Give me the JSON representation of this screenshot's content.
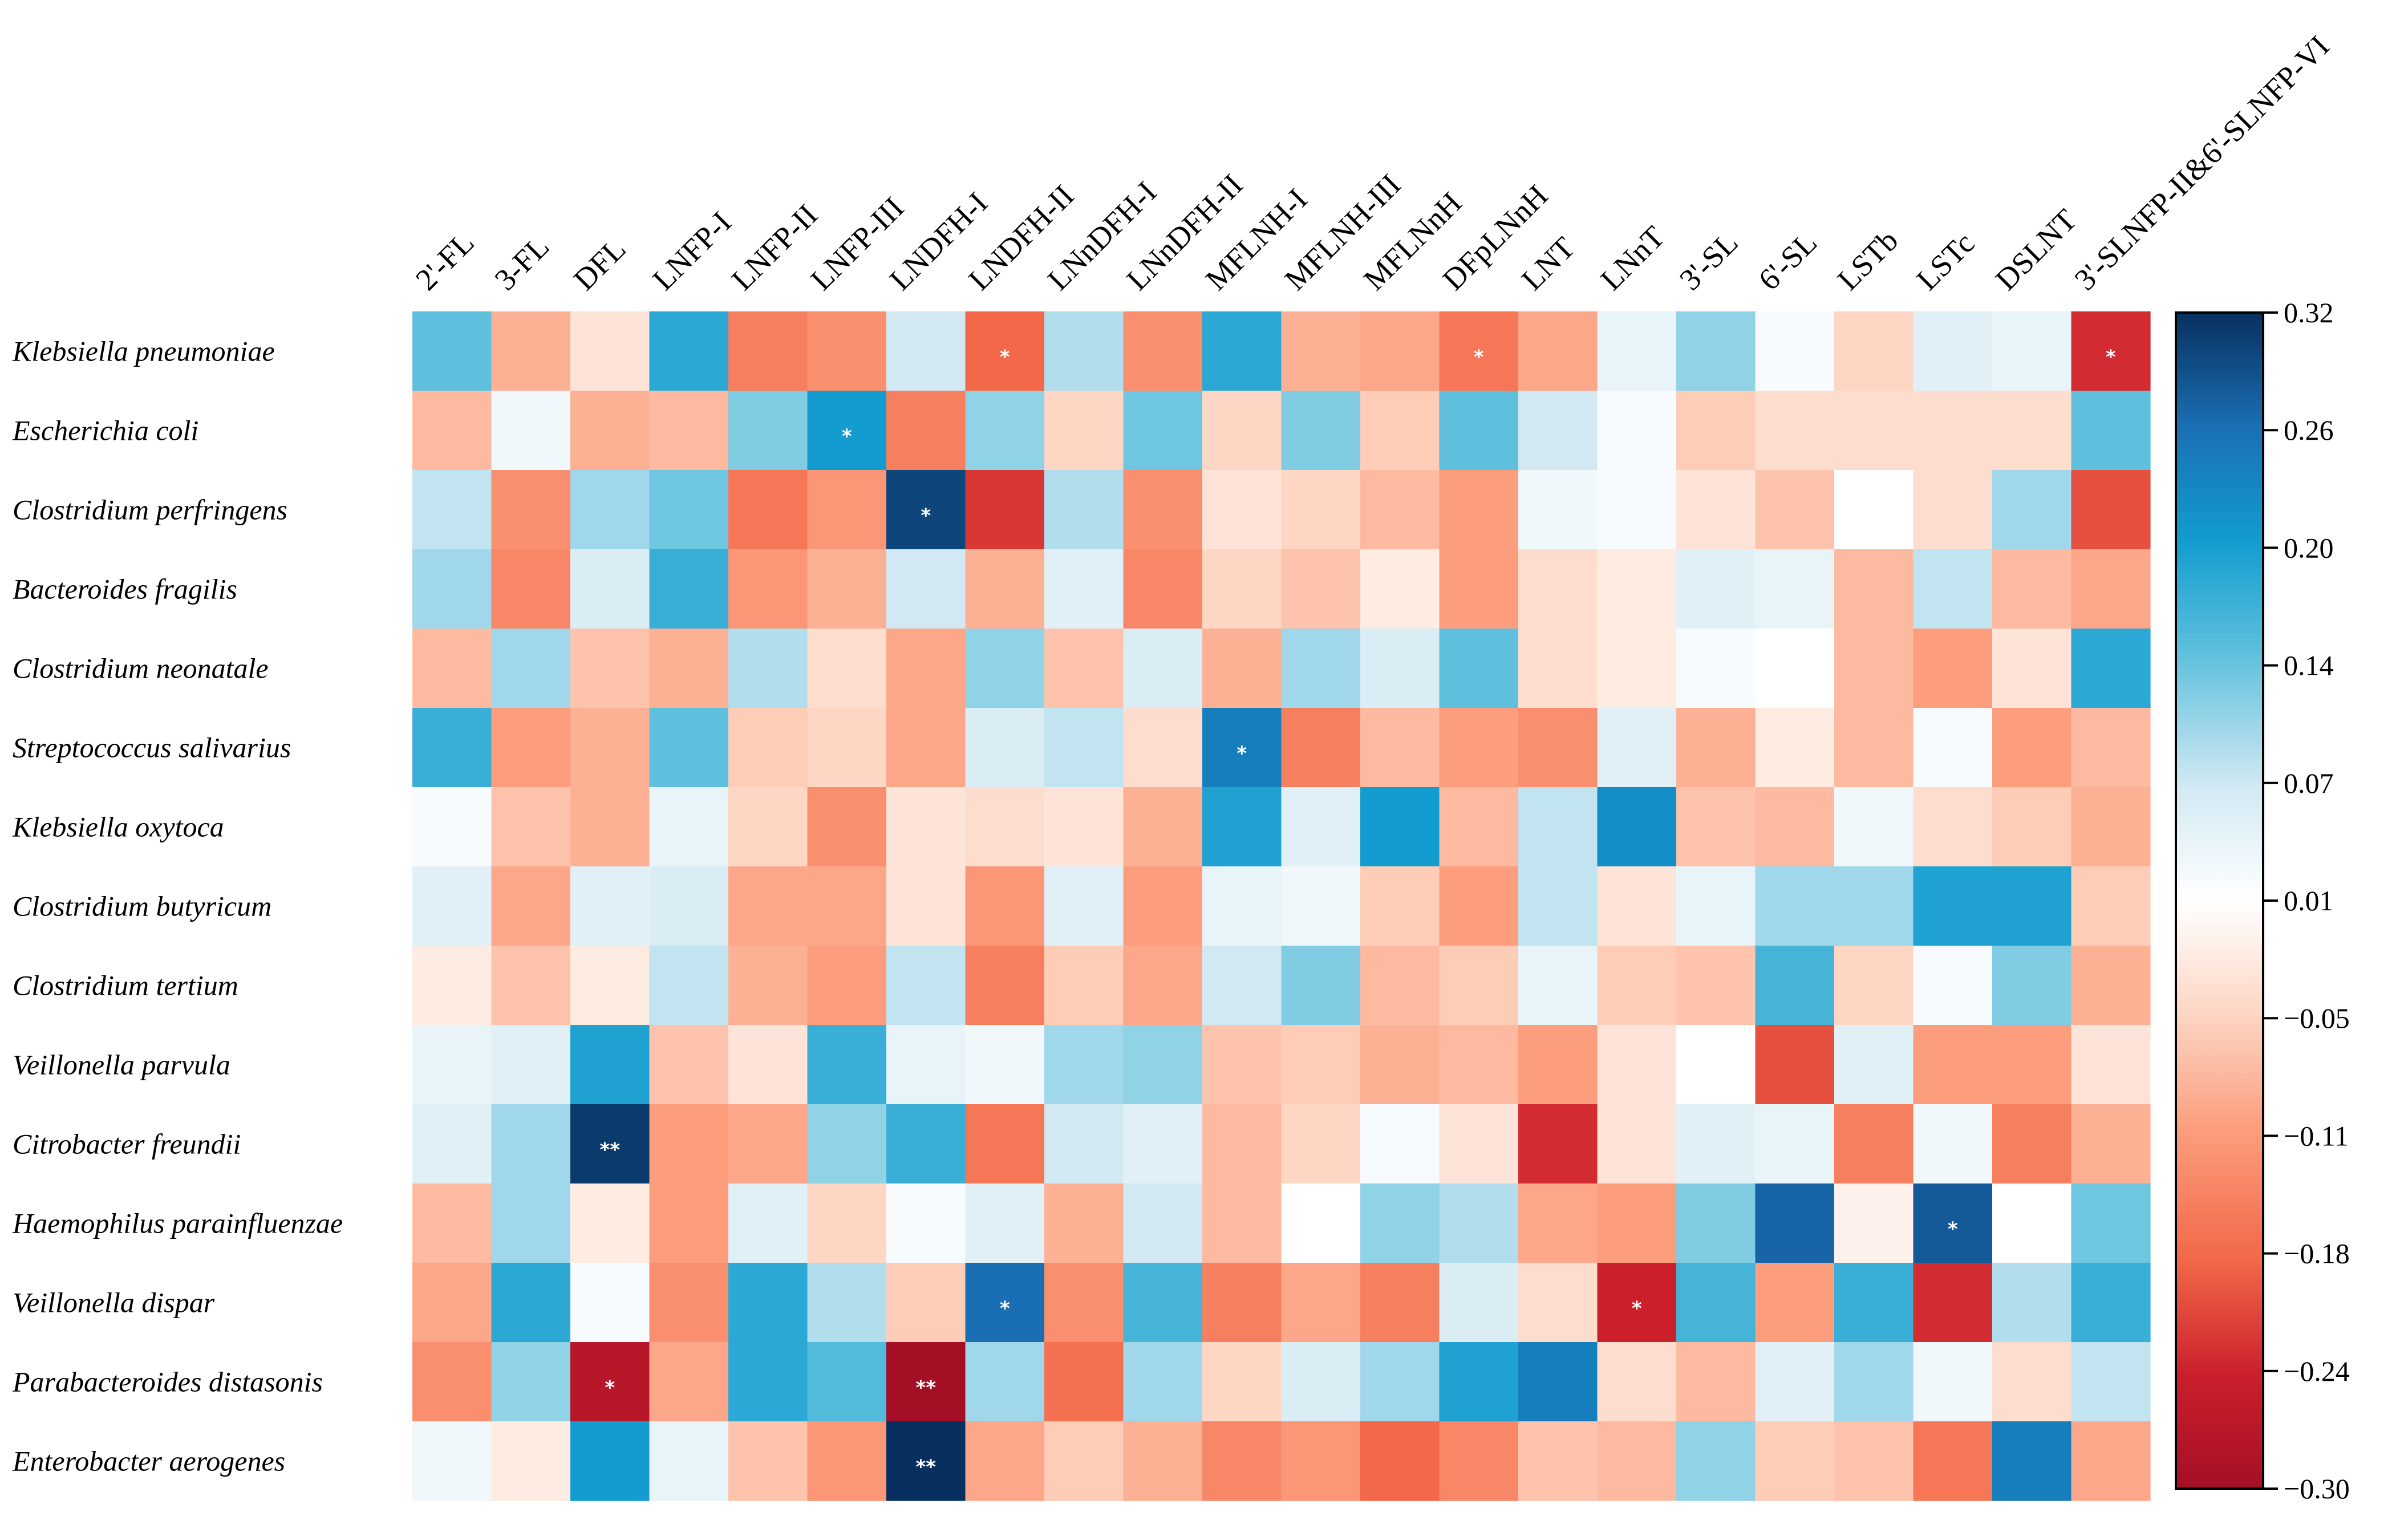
{
  "chart_data": {
    "type": "heatmap",
    "title": "",
    "columns": [
      "2'-FL",
      "3-FL",
      "DFL",
      "LNFP-I",
      "LNFP-II",
      "LNFP-III",
      "LNDFH-I",
      "LNDFH-II",
      "LNnDFH-I",
      "LNnDFH-II",
      "MFLNH-I",
      "MFLNH-III",
      "MFLNnH",
      "DFpLNnH",
      "LNT",
      "LNnT",
      "3'-SL",
      "6'-SL",
      "LSTb",
      "LSTc",
      "DSLNT",
      "3'-SLNFP-II&6'-SLNFP-VI"
    ],
    "rows": [
      "Klebsiella pneumoniae",
      "Escherichia coli",
      "Clostridium perfringens",
      "Bacteroides fragilis",
      "Clostridium neonatale",
      "Streptococcus salivarius",
      "Klebsiella oxytoca",
      "Clostridium butyricum",
      "Clostridium tertium",
      "Veillonella parvula",
      "Citrobacter freundii",
      "Haemophilus parainfluenzae",
      "Veillonella dispar",
      "Parabacteroides distasonis",
      "Enterobacter aerogenes"
    ],
    "values": [
      [
        0.14,
        -0.09,
        -0.03,
        0.18,
        -0.15,
        -0.13,
        0.07,
        -0.18,
        0.09,
        -0.13,
        0.18,
        -0.09,
        -0.1,
        -0.16,
        -0.1,
        0.04,
        0.11,
        0.02,
        -0.05,
        0.05,
        0.04,
        -0.23
      ],
      [
        -0.08,
        0.03,
        -0.09,
        -0.08,
        0.12,
        0.2,
        -0.15,
        0.11,
        -0.05,
        0.13,
        -0.05,
        0.12,
        -0.06,
        0.14,
        0.07,
        0.02,
        -0.06,
        -0.04,
        -0.04,
        -0.04,
        -0.04,
        0.14
      ],
      [
        0.08,
        -0.13,
        0.1,
        0.13,
        -0.16,
        -0.12,
        0.3,
        -0.22,
        0.09,
        -0.13,
        -0.03,
        -0.05,
        -0.08,
        -0.11,
        0.03,
        0.02,
        -0.03,
        -0.07,
        0.01,
        -0.04,
        0.1,
        -0.2
      ],
      [
        0.1,
        -0.14,
        0.06,
        0.17,
        -0.12,
        -0.09,
        0.07,
        -0.09,
        0.05,
        -0.14,
        -0.05,
        -0.07,
        -0.02,
        -0.11,
        -0.04,
        -0.02,
        0.05,
        0.04,
        -0.08,
        0.08,
        -0.08,
        -0.1
      ],
      [
        -0.08,
        0.1,
        -0.07,
        -0.09,
        0.09,
        -0.04,
        -0.1,
        0.11,
        -0.07,
        0.06,
        -0.09,
        0.1,
        0.06,
        0.14,
        -0.04,
        -0.02,
        0.02,
        0.01,
        -0.08,
        -0.11,
        -0.03,
        0.18
      ],
      [
        0.17,
        -0.11,
        -0.09,
        0.14,
        -0.06,
        -0.05,
        -0.1,
        0.06,
        0.08,
        -0.04,
        0.24,
        -0.15,
        -0.08,
        -0.11,
        -0.13,
        0.05,
        -0.09,
        -0.02,
        -0.08,
        0.02,
        -0.11,
        -0.08
      ],
      [
        0.02,
        -0.07,
        -0.09,
        0.04,
        -0.05,
        -0.13,
        -0.03,
        -0.04,
        -0.03,
        -0.09,
        0.19,
        0.05,
        0.2,
        -0.08,
        0.08,
        0.22,
        -0.07,
        -0.08,
        0.03,
        -0.04,
        -0.06,
        -0.09
      ],
      [
        0.05,
        -0.1,
        0.05,
        0.06,
        -0.1,
        -0.1,
        -0.03,
        -0.12,
        0.05,
        -0.11,
        0.04,
        0.03,
        -0.06,
        -0.11,
        0.08,
        -0.03,
        0.04,
        0.1,
        0.1,
        0.19,
        0.19,
        -0.06
      ],
      [
        -0.02,
        -0.07,
        -0.02,
        0.08,
        -0.09,
        -0.11,
        0.08,
        -0.15,
        -0.06,
        -0.1,
        0.07,
        0.12,
        -0.08,
        -0.06,
        0.04,
        -0.06,
        -0.07,
        0.16,
        -0.05,
        0.02,
        0.12,
        -0.09
      ],
      [
        0.04,
        0.05,
        0.19,
        -0.07,
        -0.03,
        0.17,
        0.04,
        0.03,
        0.1,
        0.11,
        -0.07,
        -0.06,
        -0.09,
        -0.08,
        -0.11,
        -0.03,
        0.01,
        -0.2,
        0.05,
        -0.11,
        -0.11,
        -0.03
      ],
      [
        0.05,
        0.1,
        0.31,
        -0.11,
        -0.1,
        0.11,
        0.17,
        -0.16,
        0.07,
        0.05,
        -0.08,
        -0.05,
        0.02,
        -0.03,
        -0.23,
        -0.03,
        0.05,
        0.04,
        -0.15,
        0.03,
        -0.15,
        -0.09
      ],
      [
        -0.08,
        0.1,
        -0.02,
        -0.11,
        0.05,
        -0.05,
        0.02,
        0.05,
        -0.09,
        0.07,
        -0.08,
        0.01,
        0.11,
        0.09,
        -0.1,
        -0.11,
        0.12,
        0.27,
        -0.01,
        0.28,
        0.01,
        0.13
      ],
      [
        -0.1,
        0.18,
        0.02,
        -0.13,
        0.18,
        0.09,
        -0.06,
        0.26,
        -0.13,
        0.16,
        -0.15,
        -0.1,
        -0.15,
        0.06,
        -0.04,
        -0.24,
        0.16,
        -0.11,
        0.17,
        -0.23,
        0.09,
        0.17
      ],
      [
        -0.13,
        0.11,
        -0.27,
        -0.1,
        0.18,
        0.15,
        -0.3,
        0.1,
        -0.17,
        0.1,
        -0.05,
        0.06,
        0.1,
        0.19,
        0.24,
        -0.04,
        -0.08,
        0.05,
        0.1,
        0.03,
        -0.04,
        0.08
      ],
      [
        0.03,
        -0.02,
        0.2,
        0.04,
        -0.07,
        -0.12,
        0.32,
        -0.1,
        -0.06,
        -0.09,
        -0.14,
        -0.12,
        -0.18,
        -0.14,
        -0.07,
        -0.08,
        0.11,
        -0.06,
        -0.07,
        -0.16,
        0.24,
        -0.1
      ]
    ],
    "significance": [
      {
        "row": 0,
        "col": 7,
        "mark": "*"
      },
      {
        "row": 0,
        "col": 13,
        "mark": "*"
      },
      {
        "row": 0,
        "col": 21,
        "mark": "*"
      },
      {
        "row": 1,
        "col": 5,
        "mark": "*"
      },
      {
        "row": 2,
        "col": 6,
        "mark": "*"
      },
      {
        "row": 5,
        "col": 10,
        "mark": "*"
      },
      {
        "row": 10,
        "col": 2,
        "mark": "**"
      },
      {
        "row": 11,
        "col": 19,
        "mark": "*"
      },
      {
        "row": 12,
        "col": 7,
        "mark": "*"
      },
      {
        "row": 12,
        "col": 15,
        "mark": "*"
      },
      {
        "row": 13,
        "col": 2,
        "mark": "*"
      },
      {
        "row": 13,
        "col": 6,
        "mark": "**"
      },
      {
        "row": 14,
        "col": 6,
        "mark": "**"
      }
    ],
    "colorbar": {
      "range": [
        -0.3,
        0.32
      ],
      "ticks": [
        "0.32",
        "0.26",
        "0.20",
        "0.14",
        "0.07",
        "0.01",
        "−0.05",
        "−0.11",
        "−0.18",
        "−0.24",
        "−0.30"
      ]
    },
    "colormap": [
      "#67001f",
      "#b2182b",
      "#d6604d",
      "#f4a582",
      "#fddbc7",
      "#ffffff",
      "#d1e5f0",
      "#92c5de",
      "#4393c3",
      "#2166ac",
      "#053061"
    ],
    "colormap_stops": [
      {
        "v": -0.3,
        "c": "#a50f26"
      },
      {
        "v": -0.24,
        "c": "#cb1f2c"
      },
      {
        "v": -0.18,
        "c": "#f26848"
      },
      {
        "v": -0.11,
        "c": "#fc9e7e"
      },
      {
        "v": -0.05,
        "c": "#fdd6c4"
      },
      {
        "v": 0.01,
        "c": "#ffffff"
      },
      {
        "v": 0.07,
        "c": "#d2e9f3"
      },
      {
        "v": 0.14,
        "c": "#5fc0dd"
      },
      {
        "v": 0.2,
        "c": "#129ccf"
      },
      {
        "v": 0.26,
        "c": "#1a6fb4"
      },
      {
        "v": 0.32,
        "c": "#08305f"
      }
    ]
  }
}
